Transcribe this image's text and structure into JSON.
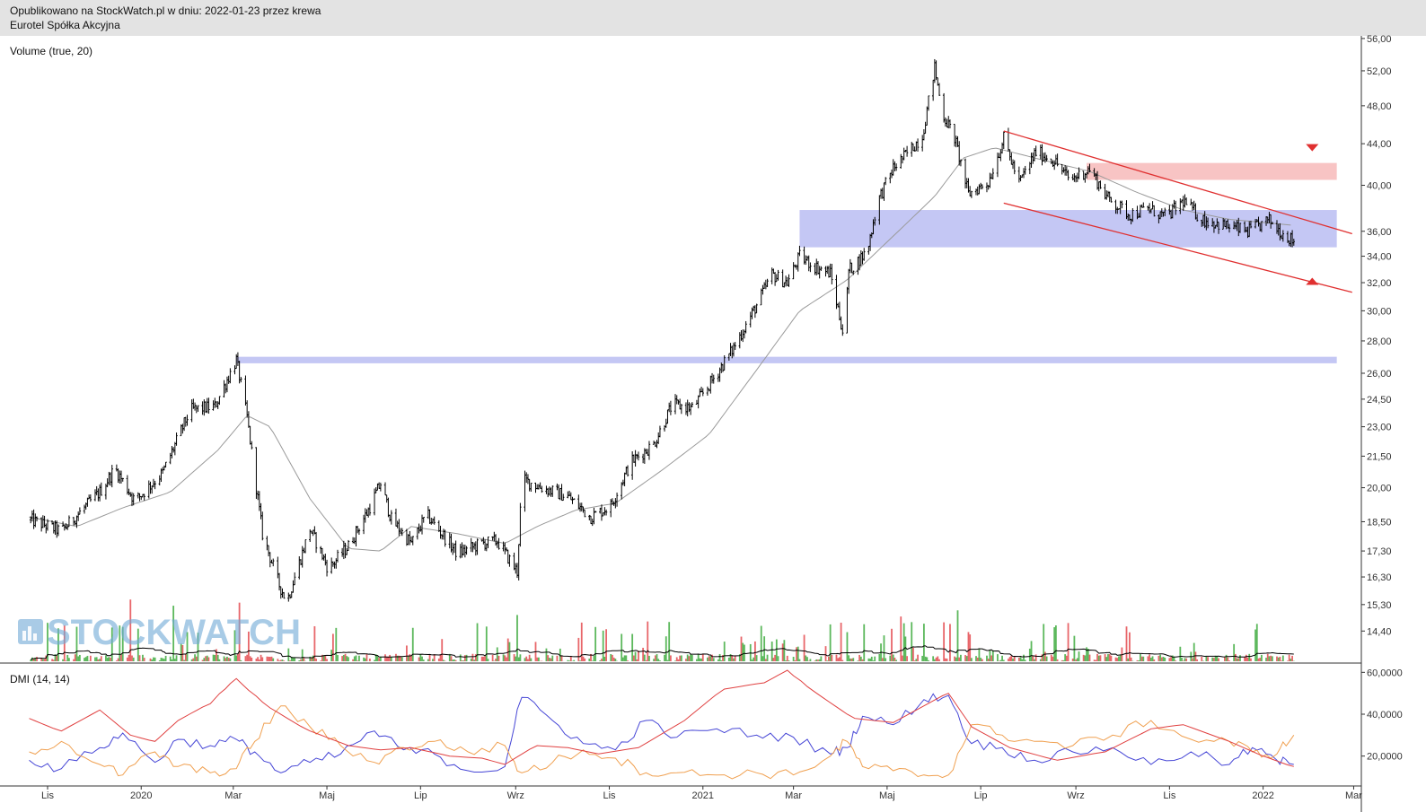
{
  "header": {
    "line1": "Opublikowano na StockWatch.pl w dniu: 2022-01-23 przez krewa",
    "line2": "Eurotel Spółka Akcyjna"
  },
  "watermark": "STOCKWATCH",
  "colors": {
    "candle": "#000000",
    "sma": "#9a9a9a",
    "vol_up": "#5cb85c",
    "vol_down": "#e8666a",
    "vol_ma": "#000000",
    "zone_blue": "#c4c7f4",
    "zone_red": "#f8c4c4",
    "trend": "#e03030",
    "di_plus": "#4646d6",
    "di_minus": "#f0a050",
    "adx": "#e04040"
  },
  "chart_data": [
    {
      "type": "candlestick",
      "title": "",
      "xlabel": "",
      "ylabel": "",
      "x_axis_labels": [
        "Lis",
        "2020",
        "Mar",
        "Maj",
        "Lip",
        "Wrz",
        "Lis",
        "2021",
        "Mar",
        "Maj",
        "Lip",
        "Wrz",
        "Lis",
        "2022",
        "Mar"
      ],
      "y_axis_labels": [
        "56,00",
        "52,00",
        "48,00",
        "44,00",
        "40,00",
        "36,00",
        "34,00",
        "32,00",
        "30,00",
        "28,00",
        "26,00",
        "24,50",
        "23,00",
        "21,50",
        "20,00",
        "18,50",
        "17,30",
        "16,30",
        "15,30",
        "14,40"
      ],
      "y_scale": "log",
      "ylim": [
        13.8,
        57
      ],
      "price_path": [
        [
          "2019-10-20",
          18.6
        ],
        [
          "2019-11-10",
          18.1
        ],
        [
          "2019-12-05",
          19.8
        ],
        [
          "2019-12-15",
          20.9
        ],
        [
          "2019-12-28",
          19.4
        ],
        [
          "2020-01-15",
          20.7
        ],
        [
          "2020-02-02",
          23.9
        ],
        [
          "2020-02-18",
          24.1
        ],
        [
          "2020-03-03",
          26.8
        ],
        [
          "2020-03-10",
          23.5
        ],
        [
          "2020-03-20",
          18.0
        ],
        [
          "2020-03-31",
          16.0
        ],
        [
          "2020-04-05",
          15.4
        ],
        [
          "2020-04-10",
          16.3
        ],
        [
          "2020-04-20",
          18.2
        ],
        [
          "2020-05-02",
          16.6
        ],
        [
          "2020-05-15",
          17.5
        ],
        [
          "2020-05-28",
          19.0
        ],
        [
          "2020-06-05",
          20.2
        ],
        [
          "2020-06-12",
          18.6
        ],
        [
          "2020-06-25",
          17.6
        ],
        [
          "2020-07-05",
          18.8
        ],
        [
          "2020-07-15",
          18.0
        ],
        [
          "2020-07-25",
          17.2
        ],
        [
          "2020-08-10",
          17.6
        ],
        [
          "2020-08-20",
          17.7
        ],
        [
          "2020-09-02",
          16.5
        ],
        [
          "2020-09-05",
          20.4
        ],
        [
          "2020-09-18",
          20.0
        ],
        [
          "2020-10-05",
          19.6
        ],
        [
          "2020-10-20",
          18.7
        ],
        [
          "2020-11-02",
          19.2
        ],
        [
          "2020-11-15",
          21.2
        ],
        [
          "2020-11-30",
          22.1
        ],
        [
          "2020-12-12",
          24.2
        ],
        [
          "2020-12-25",
          24.0
        ],
        [
          "2021-01-05",
          25.3
        ],
        [
          "2021-01-20",
          27.4
        ],
        [
          "2021-02-05",
          30.4
        ],
        [
          "2021-02-15",
          32.6
        ],
        [
          "2021-02-25",
          32.0
        ],
        [
          "2021-03-05",
          34.0
        ],
        [
          "2021-03-15",
          33.2
        ],
        [
          "2021-03-25",
          32.7
        ],
        [
          "2021-04-03",
          28.2
        ],
        [
          "2021-04-06",
          32.9
        ],
        [
          "2021-04-18",
          34.4
        ],
        [
          "2021-04-25",
          38.6
        ],
        [
          "2021-05-05",
          41.6
        ],
        [
          "2021-05-15",
          43.2
        ],
        [
          "2021-05-24",
          44.8
        ],
        [
          "2021-06-01",
          52.4
        ],
        [
          "2021-06-06",
          47.2
        ],
        [
          "2021-06-14",
          44.6
        ],
        [
          "2021-06-23",
          39.2
        ],
        [
          "2021-07-06",
          40.3
        ],
        [
          "2021-07-16",
          44.5
        ],
        [
          "2021-07-26",
          40.2
        ],
        [
          "2021-08-06",
          43.2
        ],
        [
          "2021-08-18",
          42.3
        ],
        [
          "2021-08-28",
          40.5
        ],
        [
          "2021-09-10",
          41.5
        ],
        [
          "2021-09-22",
          38.8
        ],
        [
          "2021-10-06",
          37.4
        ],
        [
          "2021-10-18",
          37.9
        ],
        [
          "2021-10-30",
          37.2
        ],
        [
          "2021-11-10",
          38.6
        ],
        [
          "2021-11-22",
          37.0
        ],
        [
          "2021-12-06",
          36.5
        ],
        [
          "2021-12-22",
          36.0
        ],
        [
          "2022-01-05",
          36.9
        ],
        [
          "2022-01-14",
          35.8
        ],
        [
          "2022-01-21",
          35.2
        ]
      ],
      "sma_path": [
        [
          "2019-10-20",
          18.7
        ],
        [
          "2019-11-20",
          18.3
        ],
        [
          "2019-12-20",
          19.1
        ],
        [
          "2020-01-20",
          19.8
        ],
        [
          "2020-02-20",
          21.8
        ],
        [
          "2020-03-10",
          23.6
        ],
        [
          "2020-03-25",
          23.0
        ],
        [
          "2020-04-20",
          19.5
        ],
        [
          "2020-05-15",
          17.4
        ],
        [
          "2020-06-05",
          17.3
        ],
        [
          "2020-06-25",
          18.3
        ],
        [
          "2020-07-25",
          18.0
        ],
        [
          "2020-08-25",
          17.6
        ],
        [
          "2020-09-15",
          18.3
        ],
        [
          "2020-10-10",
          19.0
        ],
        [
          "2020-11-05",
          19.3
        ],
        [
          "2020-12-05",
          20.8
        ],
        [
          "2021-01-05",
          22.6
        ],
        [
          "2021-02-05",
          26.2
        ],
        [
          "2021-03-05",
          30.0
        ],
        [
          "2021-04-05",
          32.2
        ],
        [
          "2021-05-05",
          35.6
        ],
        [
          "2021-06-01",
          39.0
        ],
        [
          "2021-06-20",
          42.6
        ],
        [
          "2021-07-10",
          43.6
        ],
        [
          "2021-08-10",
          42.4
        ],
        [
          "2021-09-10",
          41.3
        ],
        [
          "2021-10-10",
          39.4
        ],
        [
          "2021-11-10",
          37.8
        ],
        [
          "2021-12-10",
          37.0
        ],
        [
          "2022-01-20",
          36.5
        ]
      ],
      "zones": [
        {
          "from": "2020-03-03",
          "to": "2022-02-18",
          "low": 26.6,
          "high": 27.0,
          "color": "blue"
        },
        {
          "from": "2021-03-05",
          "to": "2022-02-18",
          "low": 34.7,
          "high": 37.8,
          "color": "blue"
        },
        {
          "from": "2021-09-08",
          "to": "2022-02-18",
          "low": 40.5,
          "high": 42.1,
          "color": "red"
        }
      ],
      "trend_lines": [
        {
          "from": [
            "2021-07-16",
            45.3
          ],
          "to": [
            "2022-02-28",
            35.8
          ]
        },
        {
          "from": [
            "2021-07-16",
            38.4
          ],
          "to": [
            "2022-02-28",
            31.3
          ]
        }
      ],
      "markers": [
        {
          "date": "2022-02-02",
          "price": 43.6,
          "shape": "triangle-down"
        },
        {
          "date": "2022-02-02",
          "price": 32.1,
          "shape": "triangle-up"
        }
      ]
    },
    {
      "type": "bar",
      "title": "Volume (true, 20)",
      "y_axis_labels": [],
      "spikes": [
        {
          "date": "2020-09-02",
          "value": 30,
          "direction": "up"
        },
        {
          "date": "2021-06-26",
          "value": 100,
          "direction": "down"
        },
        {
          "date": "2021-06-16",
          "value": 33,
          "direction": "up"
        },
        {
          "date": "2021-07-17",
          "value": 33,
          "direction": "down"
        },
        {
          "date": "2021-05-10",
          "value": 29,
          "direction": "down"
        },
        {
          "date": "2021-04-01",
          "value": 25,
          "direction": "down"
        },
        {
          "date": "2020-03-05",
          "value": 38,
          "direction": "down"
        },
        {
          "date": "2020-01-22",
          "value": 36,
          "direction": "up"
        },
        {
          "date": "2019-12-25",
          "value": 40,
          "direction": "down"
        },
        {
          "date": "2020-03-15",
          "value": 32,
          "direction": "down"
        }
      ],
      "typical_value": 4
    },
    {
      "type": "line",
      "title": "DMI (14, 14)",
      "y_axis_labels": [
        "60,0000",
        "40,0000",
        "20,0000"
      ],
      "ylim": [
        4,
        61
      ],
      "series": [
        {
          "color": "di_plus",
          "points": [
            [
              "2019-10-20",
              18
            ],
            [
              "2019-11-10",
              14
            ],
            [
              "2019-12-05",
              24
            ],
            [
              "2019-12-20",
              31
            ],
            [
              "2020-01-10",
              17
            ],
            [
              "2020-01-25",
              28
            ],
            [
              "2020-02-15",
              25
            ],
            [
              "2020-03-03",
              28
            ],
            [
              "2020-03-15",
              22
            ],
            [
              "2020-04-01",
              12
            ],
            [
              "2020-04-20",
              17
            ],
            [
              "2020-05-10",
              21
            ],
            [
              "2020-06-01",
              32
            ],
            [
              "2020-06-20",
              23
            ],
            [
              "2020-07-10",
              21
            ],
            [
              "2020-08-01",
              13
            ],
            [
              "2020-08-25",
              15
            ],
            [
              "2020-09-05",
              48
            ],
            [
              "2020-09-25",
              37
            ],
            [
              "2020-10-15",
              26
            ],
            [
              "2020-11-05",
              23
            ],
            [
              "2020-11-25",
              37
            ],
            [
              "2020-12-15",
              29
            ],
            [
              "2021-01-10",
              33
            ],
            [
              "2021-02-05",
              30
            ],
            [
              "2021-03-01",
              29
            ],
            [
              "2021-03-25",
              21
            ],
            [
              "2021-04-05",
              24
            ],
            [
              "2021-04-15",
              39
            ],
            [
              "2021-05-05",
              35
            ],
            [
              "2021-05-25",
              47
            ],
            [
              "2021-06-10",
              49
            ],
            [
              "2021-06-25",
              26
            ],
            [
              "2021-07-15",
              24
            ],
            [
              "2021-08-05",
              18
            ],
            [
              "2021-08-30",
              22
            ],
            [
              "2021-09-25",
              24
            ],
            [
              "2021-10-20",
              16
            ],
            [
              "2021-11-15",
              22
            ],
            [
              "2021-12-10",
              16
            ],
            [
              "2021-12-25",
              24
            ],
            [
              "2022-01-10",
              18
            ],
            [
              "2022-01-21",
              16
            ]
          ]
        },
        {
          "color": "di_minus",
          "points": [
            [
              "2019-10-20",
              22
            ],
            [
              "2019-11-10",
              27
            ],
            [
              "2019-12-05",
              16
            ],
            [
              "2019-12-20",
              11
            ],
            [
              "2020-01-10",
              22
            ],
            [
              "2020-01-25",
              15
            ],
            [
              "2020-02-15",
              12
            ],
            [
              "2020-03-03",
              14
            ],
            [
              "2020-03-15",
              27
            ],
            [
              "2020-04-01",
              44
            ],
            [
              "2020-04-20",
              34
            ],
            [
              "2020-05-10",
              25
            ],
            [
              "2020-06-01",
              17
            ],
            [
              "2020-06-20",
              24
            ],
            [
              "2020-07-10",
              27
            ],
            [
              "2020-08-01",
              22
            ],
            [
              "2020-08-25",
              25
            ],
            [
              "2020-09-05",
              12
            ],
            [
              "2020-09-25",
              17
            ],
            [
              "2020-10-15",
              23
            ],
            [
              "2020-11-05",
              19
            ],
            [
              "2020-11-25",
              12
            ],
            [
              "2020-12-15",
              12
            ],
            [
              "2021-01-10",
              11
            ],
            [
              "2021-02-05",
              12
            ],
            [
              "2021-03-01",
              11
            ],
            [
              "2021-03-25",
              20
            ],
            [
              "2021-04-05",
              27
            ],
            [
              "2021-04-15",
              15
            ],
            [
              "2021-05-05",
              13
            ],
            [
              "2021-05-25",
              11
            ],
            [
              "2021-06-10",
              11
            ],
            [
              "2021-06-25",
              35
            ],
            [
              "2021-07-15",
              30
            ],
            [
              "2021-08-05",
              27
            ],
            [
              "2021-08-30",
              25
            ],
            [
              "2021-09-25",
              30
            ],
            [
              "2021-10-20",
              37
            ],
            [
              "2021-11-15",
              28
            ],
            [
              "2021-12-10",
              27
            ],
            [
              "2021-12-25",
              22
            ],
            [
              "2022-01-10",
              21
            ],
            [
              "2022-01-21",
              30
            ]
          ]
        },
        {
          "color": "adx",
          "points": [
            [
              "2019-10-20",
              38
            ],
            [
              "2019-11-10",
              32
            ],
            [
              "2019-12-05",
              42
            ],
            [
              "2019-12-25",
              30
            ],
            [
              "2020-01-10",
              27
            ],
            [
              "2020-01-25",
              37
            ],
            [
              "2020-02-15",
              45
            ],
            [
              "2020-03-03",
              57
            ],
            [
              "2020-03-25",
              43
            ],
            [
              "2020-04-20",
              32
            ],
            [
              "2020-05-15",
              25
            ],
            [
              "2020-06-05",
              23
            ],
            [
              "2020-06-25",
              24
            ],
            [
              "2020-07-20",
              20
            ],
            [
              "2020-08-10",
              19
            ],
            [
              "2020-08-25",
              16
            ],
            [
              "2020-09-15",
              25
            ],
            [
              "2020-10-05",
              24
            ],
            [
              "2020-10-25",
              21
            ],
            [
              "2020-11-20",
              24
            ],
            [
              "2020-12-20",
              37
            ],
            [
              "2021-01-15",
              52
            ],
            [
              "2021-02-10",
              55
            ],
            [
              "2021-02-25",
              61
            ],
            [
              "2021-03-20",
              48
            ],
            [
              "2021-04-10",
              38
            ],
            [
              "2021-05-05",
              36
            ],
            [
              "2021-05-25",
              44
            ],
            [
              "2021-06-10",
              50
            ],
            [
              "2021-06-25",
              34
            ],
            [
              "2021-07-20",
              24
            ],
            [
              "2021-08-20",
              18
            ],
            [
              "2021-09-20",
              22
            ],
            [
              "2021-10-20",
              33
            ],
            [
              "2021-11-10",
              35
            ],
            [
              "2021-12-10",
              27
            ],
            [
              "2022-01-05",
              19
            ],
            [
              "2022-01-21",
              15
            ]
          ]
        }
      ]
    }
  ]
}
